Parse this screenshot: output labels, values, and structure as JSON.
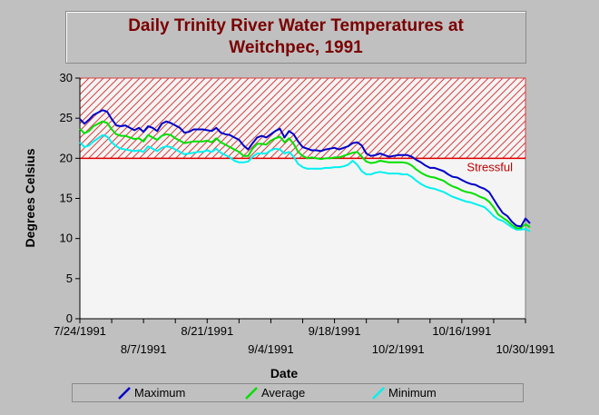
{
  "chart_data": {
    "type": "line",
    "title_line1": "Daily Trinity River Water Temperatures at",
    "title_line2": "Weitchpec, 1991",
    "xlabel": "Date",
    "ylabel": "Degrees Celsius",
    "ylim": [
      0,
      30
    ],
    "yticks": [
      0,
      5,
      10,
      15,
      20,
      25,
      30
    ],
    "xlim": [
      "7/24/1991",
      "10/30/1991"
    ],
    "xtick_labels": [
      {
        "date": "7/24/1991",
        "day": 0,
        "row": 0
      },
      {
        "date": "8/7/1991",
        "day": 14,
        "row": 1
      },
      {
        "date": "8/21/1991",
        "day": 28,
        "row": 0
      },
      {
        "date": "9/4/1991",
        "day": 42,
        "row": 1
      },
      {
        "date": "9/18/1991",
        "day": 56,
        "row": 0
      },
      {
        "date": "10/2/1991",
        "day": 70,
        "row": 1
      },
      {
        "date": "10/16/1991",
        "day": 84,
        "row": 0
      },
      {
        "date": "10/30/1991",
        "day": 98,
        "row": 1
      }
    ],
    "threshold": {
      "value": 20,
      "label": "Stressful",
      "color": "#e00000"
    },
    "grid": false,
    "legend_placement": "bottom",
    "start_date": "7/24/1991",
    "series": [
      {
        "name": "Maximum",
        "color": "#0000c8",
        "values": [
          24.9,
          24.3,
          24.8,
          25.4,
          25.7,
          26.0,
          25.8,
          24.9,
          24.1,
          24.0,
          24.1,
          23.8,
          23.5,
          23.8,
          23.3,
          24.0,
          23.8,
          23.4,
          24.3,
          24.6,
          24.4,
          24.1,
          23.8,
          23.2,
          23.3,
          23.6,
          23.6,
          23.6,
          23.5,
          23.4,
          23.8,
          23.2,
          23.0,
          22.9,
          22.6,
          22.3,
          21.6,
          21.1,
          21.9,
          22.6,
          22.8,
          22.6,
          23.0,
          23.4,
          23.7,
          22.6,
          23.4,
          23.0,
          22.1,
          21.4,
          21.2,
          21.0,
          21.0,
          20.9,
          21.1,
          21.2,
          21.3,
          21.1,
          21.3,
          21.5,
          21.9,
          22.0,
          21.6,
          20.6,
          20.3,
          20.4,
          20.6,
          20.4,
          20.2,
          20.3,
          20.4,
          20.4,
          20.4,
          20.2,
          19.8,
          19.5,
          19.1,
          18.8,
          18.8,
          18.6,
          18.4,
          18.0,
          17.7,
          17.6,
          17.3,
          17.0,
          16.8,
          16.7,
          16.4,
          16.2,
          15.8,
          14.9,
          14.0,
          13.2,
          12.8,
          12.1,
          11.6,
          11.5,
          12.5,
          11.9
        ]
      },
      {
        "name": "Average",
        "color": "#00e000",
        "values": [
          23.7,
          23.1,
          23.4,
          24.0,
          24.3,
          24.6,
          24.4,
          23.6,
          23.0,
          22.8,
          22.8,
          22.6,
          22.4,
          22.5,
          22.1,
          22.9,
          22.6,
          22.3,
          22.8,
          23.0,
          22.9,
          22.5,
          22.2,
          21.9,
          22.0,
          22.1,
          22.1,
          22.1,
          22.2,
          22.0,
          22.5,
          22.0,
          21.7,
          21.4,
          21.1,
          20.8,
          20.3,
          20.3,
          21.2,
          21.8,
          21.8,
          21.7,
          22.2,
          22.5,
          22.7,
          22.0,
          22.5,
          21.8,
          20.8,
          20.3,
          20.0,
          20.1,
          20.0,
          19.9,
          20.0,
          20.0,
          20.1,
          20.1,
          20.3,
          20.5,
          20.7,
          20.8,
          20.2,
          19.6,
          19.4,
          19.5,
          19.7,
          19.6,
          19.5,
          19.5,
          19.5,
          19.5,
          19.4,
          19.1,
          18.6,
          18.2,
          17.9,
          17.7,
          17.6,
          17.4,
          17.2,
          16.8,
          16.5,
          16.3,
          16.0,
          15.8,
          15.7,
          15.5,
          15.2,
          15.0,
          14.6,
          13.9,
          13.0,
          12.6,
          12.2,
          11.7,
          11.3,
          11.3,
          11.8,
          11.4
        ]
      },
      {
        "name": "Minimum",
        "color": "#00f0f0",
        "values": [
          22.0,
          21.4,
          21.6,
          22.1,
          22.5,
          22.9,
          22.7,
          22.0,
          21.5,
          21.2,
          21.1,
          21.0,
          20.9,
          21.0,
          20.8,
          21.5,
          21.2,
          20.9,
          21.3,
          21.5,
          21.4,
          21.1,
          20.8,
          20.5,
          20.6,
          20.7,
          20.8,
          20.8,
          21.0,
          20.8,
          21.2,
          20.7,
          20.4,
          20.1,
          19.7,
          19.5,
          19.5,
          19.6,
          20.2,
          20.6,
          20.6,
          20.6,
          21.0,
          21.2,
          21.1,
          20.6,
          20.8,
          20.2,
          19.3,
          18.9,
          18.7,
          18.7,
          18.7,
          18.7,
          18.8,
          18.8,
          18.9,
          18.9,
          19.0,
          19.2,
          19.7,
          19.2,
          18.4,
          18.0,
          18.0,
          18.2,
          18.3,
          18.2,
          18.1,
          18.1,
          18.1,
          18.0,
          18.0,
          17.7,
          17.2,
          16.8,
          16.5,
          16.3,
          16.2,
          16.0,
          15.8,
          15.5,
          15.2,
          15.0,
          14.8,
          14.6,
          14.5,
          14.3,
          14.1,
          13.9,
          13.4,
          12.8,
          12.4,
          12.2,
          11.8,
          11.4,
          11.1,
          11.1,
          11.2,
          10.9
        ]
      }
    ]
  }
}
